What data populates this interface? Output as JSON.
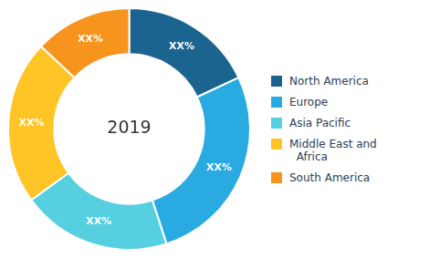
{
  "chart_data": {
    "type": "doughnut",
    "categories": [
      "North America",
      "Europe",
      "Asia Pacific",
      "Middle East and\n  Africa",
      "South America"
    ],
    "values": [
      18,
      27,
      20,
      22,
      13
    ],
    "value_labels": [
      "XX%",
      "XX%",
      "XX%",
      "XX%",
      "XX%"
    ],
    "data_labels": true,
    "colors": [
      "#1b6490",
      "#29abe2",
      "#56cfe1",
      "#ffc425",
      "#f7941d"
    ],
    "annotations": [
      "2019"
    ],
    "legend": "right"
  }
}
